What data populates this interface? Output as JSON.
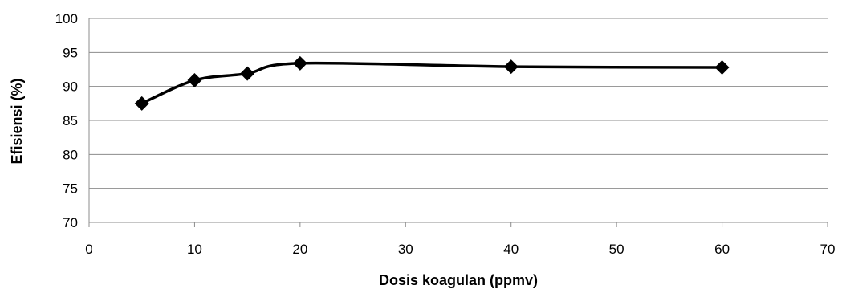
{
  "chart_data": {
    "type": "scatter",
    "xlabel": "Dosis koagulan (ppmv)",
    "ylabel": "Efisiensi (%)",
    "xlim": [
      0,
      70
    ],
    "ylim": [
      70,
      100
    ],
    "x_ticks": [
      "0",
      "10",
      "20",
      "30",
      "40",
      "50",
      "60",
      "70"
    ],
    "y_ticks": [
      "70",
      "75",
      "80",
      "85",
      "90",
      "95",
      "100"
    ],
    "grid": "horizontal",
    "line_style": "smooth",
    "marker": "diamond",
    "color": "#000000",
    "series": [
      {
        "x": [
          5,
          10,
          15,
          20,
          40,
          60
        ],
        "y": [
          87.5,
          90.9,
          91.9,
          93.4,
          92.9,
          92.8
        ]
      }
    ]
  }
}
